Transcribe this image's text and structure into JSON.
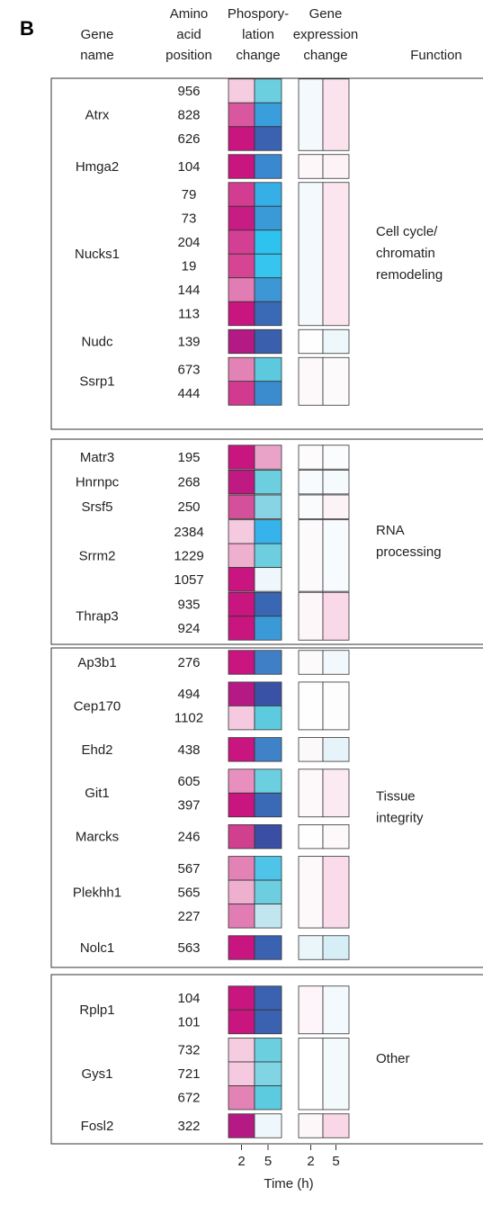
{
  "panel": "B",
  "headers": {
    "gene": [
      "Gene",
      "name"
    ],
    "position": [
      "Amino",
      "acid",
      "position"
    ],
    "phospho": [
      "Phospory-",
      "lation",
      "change"
    ],
    "expression": [
      "Gene",
      "expression",
      "change"
    ],
    "function": [
      "Function"
    ]
  },
  "groups": [
    {
      "function": [
        "Cell cycle/",
        "chromatin",
        "remodeling"
      ],
      "genes": [
        {
          "name": "Atrx",
          "expression": [
            "#f3f9fc",
            "#fbe3ee"
          ],
          "sites": [
            {
              "position": 956,
              "phospho": [
                "#f6cce1",
                "#6ccfe0"
              ]
            },
            {
              "position": 828,
              "phospho": [
                "#d9579f",
                "#3a9ddc"
              ]
            },
            {
              "position": 626,
              "phospho": [
                "#c8157f",
                "#3a62b0"
              ]
            }
          ]
        },
        {
          "name": "Hmga2",
          "expression": [
            "#fdf7f9",
            "#fdf2f6"
          ],
          "sites": [
            {
              "position": 104,
              "phospho": [
                "#c8157f",
                "#3a88cf"
              ]
            }
          ]
        },
        {
          "name": "Nucks1",
          "expression": [
            "#f3f9fc",
            "#fbe6ef"
          ],
          "sites": [
            {
              "position": 79,
              "phospho": [
                "#d23c91",
                "#36aee6"
              ]
            },
            {
              "position": 73,
              "phospho": [
                "#c81c85",
                "#3a9ad8"
              ]
            },
            {
              "position": 204,
              "phospho": [
                "#d33f92",
                "#2ec2ee"
              ]
            },
            {
              "position": 19,
              "phospho": [
                "#d54594",
                "#35c5ef"
              ]
            },
            {
              "position": 144,
              "phospho": [
                "#e27db3",
                "#3d97d4"
              ]
            },
            {
              "position": 113,
              "phospho": [
                "#c8157f",
                "#3a6ab5"
              ]
            }
          ]
        },
        {
          "name": "Nudc",
          "expression": [
            "#fefefe",
            "#eef8fb"
          ],
          "sites": [
            {
              "position": 139,
              "phospho": [
                "#b31a84",
                "#3a5fad"
              ]
            }
          ]
        },
        {
          "name": "Ssrp1",
          "expression": [
            "#fdf9fa",
            "#fdfafb"
          ],
          "sites": [
            {
              "position": 673,
              "phospho": [
                "#e282b5",
                "#5cc9de"
              ]
            },
            {
              "position": 444,
              "phospho": [
                "#d23a90",
                "#3a8ccf"
              ]
            }
          ]
        }
      ]
    },
    {
      "function": [
        "RNA",
        "processing"
      ],
      "genes": [
        {
          "name": "Matr3",
          "expression": [
            "#fdfbfc",
            "#fafcfd"
          ],
          "sites": [
            {
              "position": 195,
              "phospho": [
                "#c8157f",
                "#eaa3c8"
              ]
            }
          ]
        },
        {
          "name": "Hnrnpc",
          "expression": [
            "#f8fbfd",
            "#f5fafc"
          ],
          "sites": [
            {
              "position": 268,
              "phospho": [
                "#be1a82",
                "#6ccede"
              ]
            }
          ]
        },
        {
          "name": "Srsf5",
          "expression": [
            "#f9fbfc",
            "#fdf3f7"
          ],
          "sites": [
            {
              "position": 250,
              "phospho": [
                "#d5509a",
                "#88d3e4"
              ]
            }
          ]
        },
        {
          "name": "Srrm2",
          "expression": [
            "#fdfafb",
            "#f8fbfd"
          ],
          "sites": [
            {
              "position": 2384,
              "phospho": [
                "#f5c9df",
                "#35b3ea"
              ]
            },
            {
              "position": 1229,
              "phospho": [
                "#efb0d0",
                "#6ccede"
              ]
            },
            {
              "position": 1057,
              "phospho": [
                "#c8157f",
                "#eef7fb"
              ]
            }
          ]
        },
        {
          "name": "Thrap3",
          "expression": [
            "#fdf7f9",
            "#f9d9e8"
          ],
          "sites": [
            {
              "position": 935,
              "phospho": [
                "#c8157f",
                "#3a67b3"
              ]
            },
            {
              "position": 924,
              "phospho": [
                "#c8157f",
                "#3a9ad8"
              ]
            }
          ]
        }
      ]
    },
    {
      "function": [
        "Tissue",
        "integrity"
      ],
      "genes": [
        {
          "name": "Ap3b1",
          "expression": [
            "#fdfafb",
            "#f2f9fc"
          ],
          "sites": [
            {
              "position": 276,
              "phospho": [
                "#c8157f",
                "#3f7fc5"
              ]
            }
          ]
        },
        {
          "name": "Cep170",
          "expression": [
            "#fefefe",
            "#fdfdfe"
          ],
          "sites": [
            {
              "position": 494,
              "phospho": [
                "#b51a84",
                "#3a52a5"
              ]
            },
            {
              "position": 1102,
              "phospho": [
                "#f5c9df",
                "#5ccbe0"
              ]
            }
          ]
        },
        {
          "name": "Ehd2",
          "expression": [
            "#fcf9fa",
            "#e6f4fa"
          ],
          "sites": [
            {
              "position": 438,
              "phospho": [
                "#c8157f",
                "#3f82c8"
              ]
            }
          ]
        },
        {
          "name": "Git1",
          "expression": [
            "#fdf8fa",
            "#fceaf2"
          ],
          "sites": [
            {
              "position": 605,
              "phospho": [
                "#e88fc0",
                "#6ccfe0"
              ]
            },
            {
              "position": 397,
              "phospho": [
                "#c8157f",
                "#3a6ab5"
              ]
            }
          ]
        },
        {
          "name": "Marcks",
          "expression": [
            "#fefefe",
            "#fdf9fb"
          ],
          "sites": [
            {
              "position": 246,
              "phospho": [
                "#d0408f",
                "#3a4fa3"
              ]
            }
          ]
        },
        {
          "name": "Plekhh1",
          "expression": [
            "#fdf8fa",
            "#f9dbe9"
          ],
          "sites": [
            {
              "position": 567,
              "phospho": [
                "#e282b5",
                "#4ec4e8"
              ]
            },
            {
              "position": 565,
              "phospho": [
                "#efb0d0",
                "#6ccede"
              ]
            },
            {
              "position": 227,
              "phospho": [
                "#e27db3",
                "#c2e6f0"
              ]
            }
          ]
        },
        {
          "name": "Nolc1",
          "expression": [
            "#eaf6fa",
            "#d6eef6"
          ],
          "sites": [
            {
              "position": 563,
              "phospho": [
                "#c8157f",
                "#3a62b0"
              ]
            }
          ]
        }
      ]
    },
    {
      "function": [
        "Other"
      ],
      "genes": [
        {
          "name": "Rplp1",
          "expression": [
            "#fdf5f9",
            "#f3f9fc"
          ],
          "sites": [
            {
              "position": 104,
              "phospho": [
                "#c8157f",
                "#3a62b0"
              ]
            },
            {
              "position": 101,
              "phospho": [
                "#c8157f",
                "#3a62b0"
              ]
            }
          ]
        },
        {
          "name": "Gys1",
          "expression": [
            "#ffffff",
            "#f4fafc"
          ],
          "sites": [
            {
              "position": 732,
              "phospho": [
                "#f6cce1",
                "#6ccfe0"
              ]
            },
            {
              "position": 721,
              "phospho": [
                "#f5c9df",
                "#80d4e4"
              ]
            },
            {
              "position": 672,
              "phospho": [
                "#e282b5",
                "#5ccbe0"
              ]
            }
          ]
        },
        {
          "name": "Fosl2",
          "expression": [
            "#fdf7f9",
            "#fad7e7"
          ],
          "sites": [
            {
              "position": 322,
              "phospho": [
                "#b51a84",
                "#eef7fb"
              ]
            }
          ]
        }
      ]
    }
  ],
  "time_axis": {
    "ticks": [
      2,
      5
    ],
    "label": "Time (h)"
  }
}
